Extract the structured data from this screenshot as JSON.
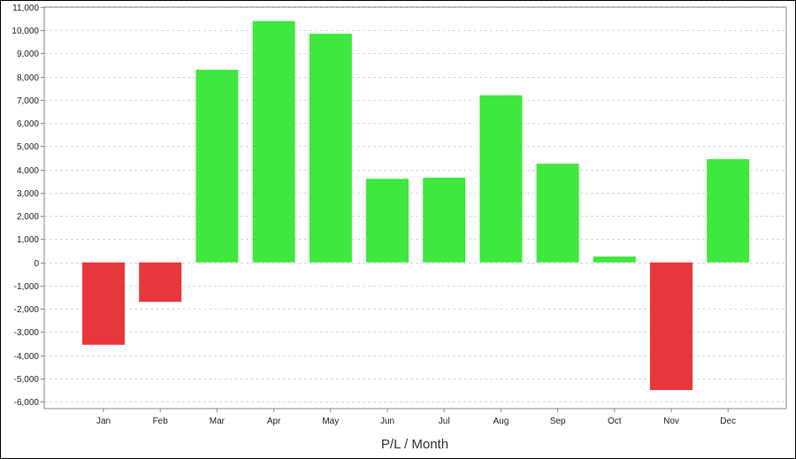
{
  "chart_data": {
    "type": "bar",
    "title": "",
    "xlabel": "P/L / Month",
    "ylabel": "",
    "categories": [
      "Jan",
      "Feb",
      "Mar",
      "Apr",
      "May",
      "Jun",
      "Jul",
      "Aug",
      "Sep",
      "Oct",
      "Nov",
      "Dec"
    ],
    "values": [
      -3550,
      -1700,
      8300,
      10400,
      9850,
      3600,
      3650,
      7200,
      4250,
      250,
      -5500,
      4450
    ],
    "ylim": [
      -6300,
      11000
    ],
    "yticks": [
      "11,000",
      "10,000",
      "9,000",
      "8,000",
      "7,000",
      "6,000",
      "5,000",
      "4,000",
      "3,000",
      "2,000",
      "1,000",
      "0",
      "-1,000",
      "-2,000",
      "-3,000",
      "-4,000",
      "-5,000",
      "-6,000"
    ],
    "ytick_values": [
      11000,
      10000,
      9000,
      8000,
      7000,
      6000,
      5000,
      4000,
      3000,
      2000,
      1000,
      0,
      -1000,
      -2000,
      -3000,
      -4000,
      -5000,
      -6000
    ],
    "grid": true,
    "legend": "none",
    "colors": {
      "positive": "#3ee83e",
      "negative": "#e8373c",
      "grid": "#d6d6d6",
      "axis": "#888888"
    }
  }
}
